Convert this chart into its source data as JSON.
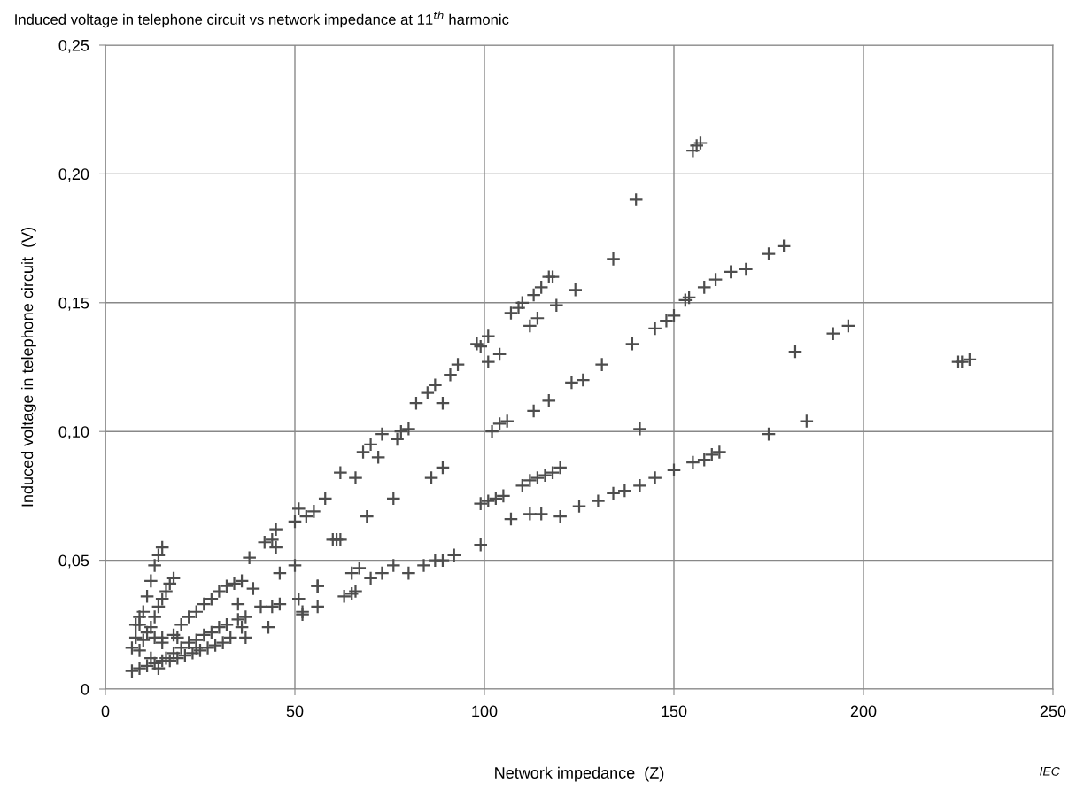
{
  "chart_data": {
    "type": "scatter",
    "title": "Induced voltage in telephone circuit vs network impedance at 11$^{th}$ harmonic",
    "xlabel": "Network impedance  (Z)",
    "ylabel": "Induced voltage in telephone circuit  (V)",
    "annotations": [
      "IEC"
    ],
    "marker": "cross",
    "grid": true,
    "legend": false,
    "xlim": [
      0,
      250
    ],
    "xticks": [
      0,
      50,
      100,
      150,
      200,
      250
    ],
    "ylim": [
      0,
      0.25
    ],
    "yticks": [
      {
        "value": 0,
        "label": "0"
      },
      {
        "value": 0.05,
        "label": "0,05"
      },
      {
        "value": 0.1,
        "label": "0,10"
      },
      {
        "value": 0.15,
        "label": "0,15"
      },
      {
        "value": 0.2,
        "label": "0,20"
      },
      {
        "value": 0.25,
        "label": "0,25"
      }
    ],
    "series": [
      {
        "color": "#4d4d4d",
        "x": [
          45,
          50,
          51,
          53,
          55,
          58,
          62,
          66,
          68,
          70,
          72,
          73,
          77,
          78,
          80,
          82,
          85,
          87,
          89,
          91,
          93,
          98,
          99,
          101,
          101,
          104,
          107,
          109,
          110,
          112,
          113,
          114,
          115,
          117,
          118,
          119,
          124,
          134,
          140,
          155,
          156,
          157,
          38,
          42,
          44,
          45,
          46,
          50,
          52,
          56,
          61,
          65,
          67,
          69,
          76,
          86,
          89,
          99,
          101,
          103,
          105,
          110,
          112,
          114,
          116,
          118,
          120,
          102,
          104,
          106,
          113,
          117,
          123,
          126,
          131,
          139,
          145,
          148,
          150,
          153,
          154,
          158,
          161,
          165,
          169,
          175,
          179,
          141,
          44,
          46,
          51,
          52,
          56,
          63,
          65,
          66,
          70,
          73,
          76,
          80,
          84,
          87,
          89,
          92,
          99,
          107,
          112,
          115,
          120,
          125,
          130,
          134,
          137,
          141,
          145,
          150,
          155,
          158,
          160,
          162,
          175,
          185,
          182,
          192,
          196,
          225,
          226,
          228,
          56,
          60,
          62,
          7,
          8,
          9,
          10,
          11,
          12,
          13,
          14,
          15,
          8,
          9,
          9,
          10,
          12,
          13,
          14,
          15,
          16,
          17,
          18,
          11,
          13,
          15,
          15,
          18,
          20,
          22,
          24,
          26,
          28,
          30,
          32,
          34,
          36,
          16,
          18,
          20,
          22,
          24,
          26,
          28,
          30,
          32,
          35,
          37,
          7,
          9,
          11,
          13,
          15,
          17,
          19,
          21,
          23,
          25,
          27,
          29,
          31,
          12,
          14,
          19,
          24,
          33,
          37,
          36,
          39,
          41,
          43,
          35
        ],
        "values": [
          0.062,
          0.065,
          0.07,
          0.067,
          0.069,
          0.074,
          0.084,
          0.082,
          0.092,
          0.095,
          0.09,
          0.099,
          0.097,
          0.1,
          0.101,
          0.111,
          0.115,
          0.118,
          0.111,
          0.122,
          0.126,
          0.134,
          0.133,
          0.127,
          0.137,
          0.13,
          0.146,
          0.148,
          0.15,
          0.141,
          0.153,
          0.144,
          0.156,
          0.16,
          0.16,
          0.149,
          0.155,
          0.167,
          0.19,
          0.209,
          0.211,
          0.212,
          0.051,
          0.057,
          0.058,
          0.055,
          0.045,
          0.048,
          0.029,
          0.04,
          0.058,
          0.045,
          0.047,
          0.067,
          0.074,
          0.082,
          0.086,
          0.072,
          0.073,
          0.074,
          0.075,
          0.079,
          0.081,
          0.082,
          0.083,
          0.084,
          0.086,
          0.1,
          0.103,
          0.104,
          0.108,
          0.112,
          0.119,
          0.12,
          0.126,
          0.134,
          0.14,
          0.143,
          0.145,
          0.151,
          0.152,
          0.156,
          0.159,
          0.162,
          0.163,
          0.169,
          0.172,
          0.101,
          0.032,
          0.033,
          0.035,
          0.03,
          0.032,
          0.036,
          0.037,
          0.038,
          0.043,
          0.045,
          0.048,
          0.045,
          0.048,
          0.05,
          0.05,
          0.052,
          0.056,
          0.066,
          0.068,
          0.068,
          0.067,
          0.071,
          0.073,
          0.076,
          0.077,
          0.079,
          0.082,
          0.085,
          0.088,
          0.089,
          0.091,
          0.092,
          0.099,
          0.104,
          0.131,
          0.138,
          0.141,
          0.127,
          0.127,
          0.128,
          0.04,
          0.058,
          0.058,
          0.016,
          0.02,
          0.025,
          0.03,
          0.036,
          0.042,
          0.048,
          0.052,
          0.055,
          0.025,
          0.028,
          0.015,
          0.019,
          0.024,
          0.028,
          0.032,
          0.035,
          0.038,
          0.041,
          0.043,
          0.022,
          0.02,
          0.02,
          0.018,
          0.021,
          0.025,
          0.028,
          0.03,
          0.033,
          0.035,
          0.038,
          0.04,
          0.041,
          0.042,
          0.012,
          0.014,
          0.016,
          0.018,
          0.019,
          0.021,
          0.022,
          0.024,
          0.025,
          0.027,
          0.028,
          0.007,
          0.008,
          0.009,
          0.01,
          0.011,
          0.011,
          0.012,
          0.013,
          0.014,
          0.015,
          0.016,
          0.017,
          0.018,
          0.012,
          0.008,
          0.02,
          0.016,
          0.02,
          0.02,
          0.024,
          0.039,
          0.032,
          0.024,
          0.033
        ]
      }
    ]
  }
}
